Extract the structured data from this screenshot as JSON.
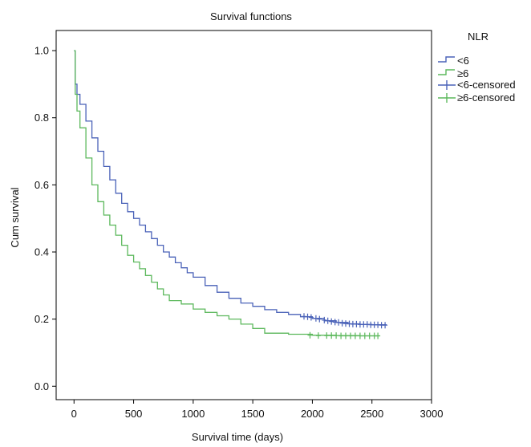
{
  "chart_data": {
    "type": "line",
    "title": "Survival functions",
    "xlabel": "Survival time (days)",
    "ylabel": "Cum survival",
    "xlim": [
      -150,
      3000
    ],
    "ylim": [
      -0.04,
      1.06
    ],
    "x_ticks": [
      0,
      500,
      1000,
      1500,
      2000,
      2500,
      3000
    ],
    "y_ticks": [
      0.0,
      0.2,
      0.4,
      0.6,
      0.8,
      1.0
    ],
    "x_tick_labels": [
      "0",
      "500",
      "1000",
      "1500",
      "2000",
      "2500",
      "3000"
    ],
    "y_tick_labels": [
      "0.0",
      "0.2",
      "0.4",
      "0.6",
      "0.8",
      "1.0"
    ],
    "grid": false,
    "legend_placement": "right",
    "legend_title": "NLR",
    "legend": [
      "<6",
      "≥6",
      "<6-censored",
      "≥6-censored"
    ],
    "series": [
      {
        "name": "<6",
        "color": "#4a62b8",
        "step": true,
        "x": [
          0,
          10,
          25,
          50,
          100,
          150,
          200,
          250,
          300,
          350,
          400,
          450,
          500,
          550,
          600,
          650,
          700,
          750,
          800,
          850,
          900,
          950,
          1000,
          1100,
          1200,
          1300,
          1400,
          1500,
          1600,
          1700,
          1800,
          1900,
          2000,
          2100,
          2200,
          2300,
          2400,
          2500,
          2620
        ],
        "values": [
          1.0,
          0.9,
          0.87,
          0.84,
          0.79,
          0.74,
          0.7,
          0.655,
          0.615,
          0.575,
          0.545,
          0.52,
          0.5,
          0.48,
          0.46,
          0.44,
          0.42,
          0.4,
          0.385,
          0.368,
          0.353,
          0.338,
          0.325,
          0.3,
          0.28,
          0.262,
          0.248,
          0.238,
          0.228,
          0.22,
          0.214,
          0.207,
          0.202,
          0.195,
          0.19,
          0.186,
          0.184,
          0.183,
          0.182
        ],
        "censored_x": [
          1930,
          1960,
          1990,
          2030,
          2060,
          2100,
          2130,
          2160,
          2190,
          2220,
          2250,
          2280,
          2310,
          2340,
          2370,
          2400,
          2430,
          2460,
          2490,
          2520,
          2550,
          2580,
          2610
        ],
        "censored_y": [
          0.208,
          0.207,
          0.205,
          0.202,
          0.2,
          0.197,
          0.195,
          0.193,
          0.191,
          0.19,
          0.188,
          0.187,
          0.186,
          0.185,
          0.185,
          0.184,
          0.184,
          0.184,
          0.183,
          0.183,
          0.183,
          0.182,
          0.182
        ]
      },
      {
        "name": "≥6",
        "color": "#5cb85c",
        "step": true,
        "x": [
          0,
          10,
          25,
          50,
          100,
          150,
          200,
          250,
          300,
          350,
          400,
          450,
          500,
          550,
          600,
          650,
          700,
          750,
          800,
          900,
          1000,
          1100,
          1200,
          1300,
          1400,
          1500,
          1600,
          1800,
          2000,
          2200,
          2400,
          2560
        ],
        "values": [
          1.0,
          0.87,
          0.82,
          0.77,
          0.68,
          0.6,
          0.55,
          0.51,
          0.48,
          0.45,
          0.42,
          0.39,
          0.37,
          0.35,
          0.33,
          0.31,
          0.29,
          0.272,
          0.255,
          0.245,
          0.23,
          0.22,
          0.21,
          0.2,
          0.185,
          0.172,
          0.158,
          0.155,
          0.152,
          0.151,
          0.15,
          0.15
        ],
        "censored_x": [
          1980,
          2050,
          2120,
          2160,
          2200,
          2240,
          2280,
          2320,
          2360,
          2400,
          2440,
          2480,
          2520,
          2550
        ],
        "censored_y": [
          0.152,
          0.151,
          0.151,
          0.151,
          0.151,
          0.15,
          0.15,
          0.15,
          0.15,
          0.15,
          0.15,
          0.15,
          0.15,
          0.15
        ]
      }
    ]
  }
}
